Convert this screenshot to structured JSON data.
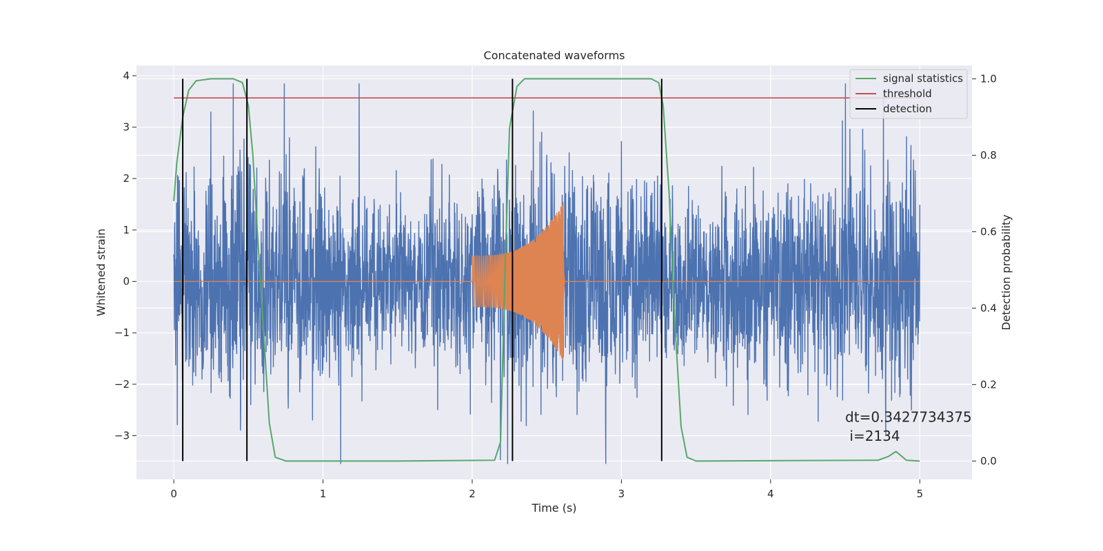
{
  "chart_data": {
    "type": "line",
    "title": "Concatenated waveforms",
    "xlabel": "Time (s)",
    "ylabel_left": "Whitened strain",
    "ylabel_right": "Detection probability",
    "xlim": [
      -0.25,
      5.35
    ],
    "ylim_left": [
      -3.85,
      4.2
    ],
    "ylim_right": [
      -0.048,
      1.035
    ],
    "x_ticks": [
      0,
      1,
      2,
      3,
      4,
      5
    ],
    "x_tick_labels": [
      "0",
      "1",
      "2",
      "3",
      "4",
      "5"
    ],
    "y_left_ticks": [
      -3,
      -2,
      -1,
      0,
      1,
      2,
      3,
      4
    ],
    "y_left_tick_labels": [
      "−3",
      "−2",
      "−1",
      "0",
      "1",
      "2",
      "3",
      "4"
    ],
    "y_right_ticks": [
      0,
      0.2,
      0.4,
      0.6,
      0.8,
      1.0
    ],
    "y_right_tick_labels": [
      "0.0",
      "0.2",
      "0.4",
      "0.6",
      "0.8",
      "1.0"
    ],
    "grid": true,
    "legend_position": "top-right",
    "colors": {
      "background": "#eaeaf2",
      "grid": "#ffffff",
      "strain": "#4c72b0",
      "template": "#dd8452",
      "signal_statistics": "#55a868",
      "threshold": "#c44e52",
      "detection": "#000000"
    },
    "series": [
      {
        "name": "",
        "axis": "left",
        "kind": "noise",
        "x_range": [
          0,
          5
        ],
        "typical_amplitude": 1.0,
        "extreme_range": [
          -3.55,
          3.85
        ]
      },
      {
        "name": "",
        "axis": "left",
        "kind": "chirp",
        "x_range": [
          2.0,
          2.62
        ],
        "start_amplitude": 0.5,
        "peak_amplitude": 1.55,
        "peak_x": 2.61,
        "baseline": 0.0
      },
      {
        "name": "signal statistics",
        "axis": "right",
        "points": [
          [
            0,
            0.68
          ],
          [
            0.02,
            0.78
          ],
          [
            0.06,
            0.9
          ],
          [
            0.1,
            0.97
          ],
          [
            0.15,
            0.995
          ],
          [
            0.25,
            1.0
          ],
          [
            0.4,
            1.0
          ],
          [
            0.46,
            0.99
          ],
          [
            0.5,
            0.93
          ],
          [
            0.53,
            0.8
          ],
          [
            0.56,
            0.6
          ],
          [
            0.6,
            0.35
          ],
          [
            0.64,
            0.1
          ],
          [
            0.68,
            0.01
          ],
          [
            0.75,
            0.0
          ],
          [
            1.5,
            0.0
          ],
          [
            2.15,
            0.002
          ],
          [
            2.19,
            0.05
          ],
          [
            2.22,
            0.5
          ],
          [
            2.25,
            0.87
          ],
          [
            2.3,
            0.98
          ],
          [
            2.35,
            1.0
          ],
          [
            3.2,
            1.0
          ],
          [
            3.25,
            0.99
          ],
          [
            3.28,
            0.93
          ],
          [
            3.32,
            0.7
          ],
          [
            3.36,
            0.35
          ],
          [
            3.4,
            0.09
          ],
          [
            3.44,
            0.01
          ],
          [
            3.5,
            0.0
          ],
          [
            4.72,
            0.002
          ],
          [
            4.79,
            0.012
          ],
          [
            4.84,
            0.025
          ],
          [
            4.88,
            0.012
          ],
          [
            4.91,
            0.002
          ],
          [
            5.0,
            0.0
          ]
        ]
      },
      {
        "name": "threshold",
        "axis": "right",
        "y": 0.95,
        "x_range": [
          0,
          5
        ]
      },
      {
        "name": "detection",
        "axis": "right",
        "x_positions": [
          0.06,
          0.49,
          2.27,
          3.27
        ],
        "y_range": [
          0,
          1.0
        ]
      }
    ],
    "annotations": [
      {
        "text": "dt=0.3427734375",
        "x": 4.5,
        "y": -2.73
      },
      {
        "text": " i=2134",
        "x": 4.5,
        "y": -3.1
      }
    ]
  }
}
